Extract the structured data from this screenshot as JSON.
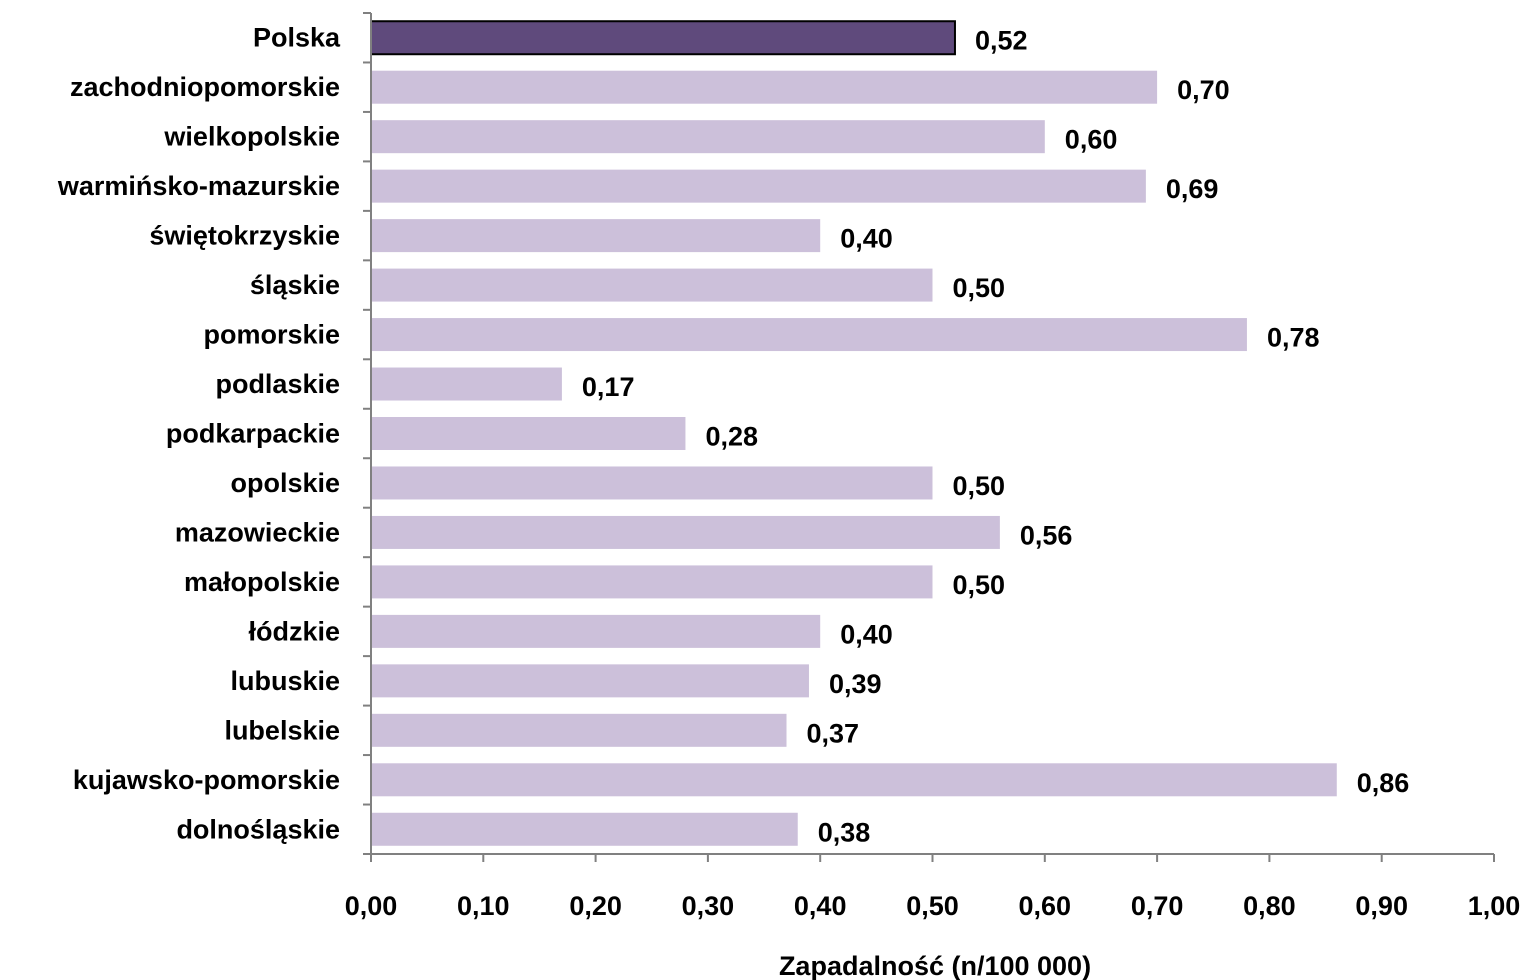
{
  "chart_data": {
    "type": "bar",
    "orientation": "horizontal",
    "categories": [
      "Polska",
      "zachodniopomorskie",
      "wielkopolskie",
      "warmińsko-mazurskie",
      "świętokrzyskie",
      "śląskie",
      "pomorskie",
      "podlaskie",
      "podkarpackie",
      "opolskie",
      "mazowieckie",
      "małopolskie",
      "łódzkie",
      "lubuskie",
      "lubelskie",
      "kujawsko-pomorskie",
      "dolnośląskie"
    ],
    "values": [
      0.52,
      0.7,
      0.6,
      0.69,
      0.4,
      0.5,
      0.78,
      0.17,
      0.28,
      0.5,
      0.56,
      0.5,
      0.4,
      0.39,
      0.37,
      0.86,
      0.38
    ],
    "value_labels": [
      "0,52",
      "0,70",
      "0,60",
      "0,69",
      "0,40",
      "0,50",
      "0,78",
      "0,17",
      "0,28",
      "0,50",
      "0,56",
      "0,50",
      "0,40",
      "0,39",
      "0,37",
      "0,86",
      "0,38"
    ],
    "highlight_category": "Polska",
    "colors": {
      "highlight": "#5f4a7c",
      "default": "#ccc0da",
      "axis": "#808080"
    },
    "xlim": [
      0,
      1.0
    ],
    "ticks": [
      0.0,
      0.1,
      0.2,
      0.3,
      0.4,
      0.5,
      0.6,
      0.7,
      0.8,
      0.9,
      1.0
    ],
    "tick_labels": [
      "0,00",
      "0,10",
      "0,20",
      "0,30",
      "0,40",
      "0,50",
      "0,60",
      "0,70",
      "0,80",
      "0,90",
      "1,00"
    ],
    "xlabel": "Zapadalność (n/100 000)",
    "title": "",
    "grid": false,
    "legend": "none"
  }
}
